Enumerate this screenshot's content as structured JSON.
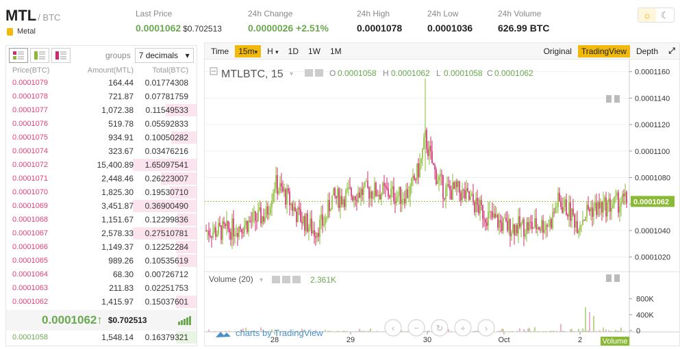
{
  "header": {
    "symbol": "MTL",
    "pair": "/ BTC",
    "category": "Metal",
    "stats": {
      "last_price_label": "Last Price",
      "last_price": "0.0001062",
      "last_price_usd": "$0.702513",
      "change_label": "24h Change",
      "change": "0.0000026",
      "change_pct": "+2.51%",
      "high_label": "24h High",
      "high": "0.0001078",
      "low_label": "24h Low",
      "low": "0.0001036",
      "volume_label": "24h Volume",
      "volume": "626.99 BTC"
    }
  },
  "theme": {
    "light_icon": "sun-icon",
    "dark_icon": "moon-icon"
  },
  "orderbook": {
    "groups_label": "groups",
    "groups_value": "7 decimals",
    "columns": [
      "Price(BTC)",
      "Amount(MTL)",
      "Total(BTC)"
    ],
    "asks": [
      {
        "price": "0.0001079",
        "amount": "164.44",
        "total": "0.01774308",
        "depth": 0.0
      },
      {
        "price": "0.0001078",
        "amount": "721.87",
        "total": "0.07781759",
        "depth": 0.0
      },
      {
        "price": "0.0001077",
        "amount": "1,072.38",
        "total": "0.11549533",
        "depth": 0.48
      },
      {
        "price": "0.0001076",
        "amount": "519.78",
        "total": "0.05592833",
        "depth": 0.0
      },
      {
        "price": "0.0001075",
        "amount": "934.91",
        "total": "0.10050282",
        "depth": 0.4
      },
      {
        "price": "0.0001074",
        "amount": "323.67",
        "total": "0.03476216",
        "depth": 0.0
      },
      {
        "price": "0.0001072",
        "amount": "15,400.89",
        "total": "1.65097541",
        "depth": 1.0
      },
      {
        "price": "0.0001071",
        "amount": "2,448.46",
        "total": "0.26223007",
        "depth": 0.56
      },
      {
        "price": "0.0001070",
        "amount": "1,825.30",
        "total": "0.19530710",
        "depth": 0.42
      },
      {
        "price": "0.0001069",
        "amount": "3,451.87",
        "total": "0.36900490",
        "depth": 1.0
      },
      {
        "price": "0.0001068",
        "amount": "1,151.67",
        "total": "0.12299836",
        "depth": 0.3
      },
      {
        "price": "0.0001067",
        "amount": "2,578.33",
        "total": "0.27510781",
        "depth": 1.0
      },
      {
        "price": "0.0001066",
        "amount": "1,149.37",
        "total": "0.12252284",
        "depth": 0.32
      },
      {
        "price": "0.0001065",
        "amount": "989.26",
        "total": "0.10535619",
        "depth": 0.3
      },
      {
        "price": "0.0001064",
        "amount": "68.30",
        "total": "0.00726712",
        "depth": 0.0
      },
      {
        "price": "0.0001063",
        "amount": "211.83",
        "total": "0.02251753",
        "depth": 0.0
      },
      {
        "price": "0.0001062",
        "amount": "1,415.97",
        "total": "0.15037601",
        "depth": 0.32
      }
    ],
    "last_price": "0.0001062",
    "last_arrow": "↑",
    "last_usd": "$0.702513",
    "bids": [
      {
        "price": "0.0001058",
        "amount": "1,548.14",
        "total": "0.16379321",
        "depth": 0.32
      }
    ]
  },
  "chart_toolbar": {
    "time": "Time",
    "interval": "15m",
    "h": "H",
    "d1": "1D",
    "w1": "1W",
    "m1": "1M",
    "original": "Original",
    "tradingview": "TradingView",
    "depth": "Depth"
  },
  "chart": {
    "title": "MTLBTC, 15",
    "o_label": "O",
    "o": "0.0001058",
    "h_label": "H",
    "h": "0.0001062",
    "l_label": "L",
    "l": "0.0001058",
    "c_label": "C",
    "c": "0.0001062",
    "volume_title": "Volume (20)",
    "volume_value": "2.361K",
    "volume_tag": "Volume",
    "price_tag": "0.0001062",
    "watermark": "charts by TradingView"
  },
  "chart_data": {
    "type": "candlestick",
    "price_axis_ticks": [
      "0.0001160",
      "0.0001140",
      "0.0001120",
      "0.0001100",
      "0.0001080",
      "0.0001060",
      "0.0001040",
      "0.0001020"
    ],
    "price_range": [
      0.000101,
      0.0001165
    ],
    "volume_axis_ticks": [
      "800K",
      "400K",
      "0"
    ],
    "volume_range": [
      0,
      1000
    ],
    "x_ticks": [
      "28",
      "29",
      "30",
      "Oct",
      "2"
    ],
    "last_price": 0.0001062,
    "colors": {
      "up": "#8ab935",
      "down": "#cc2a6a"
    }
  }
}
